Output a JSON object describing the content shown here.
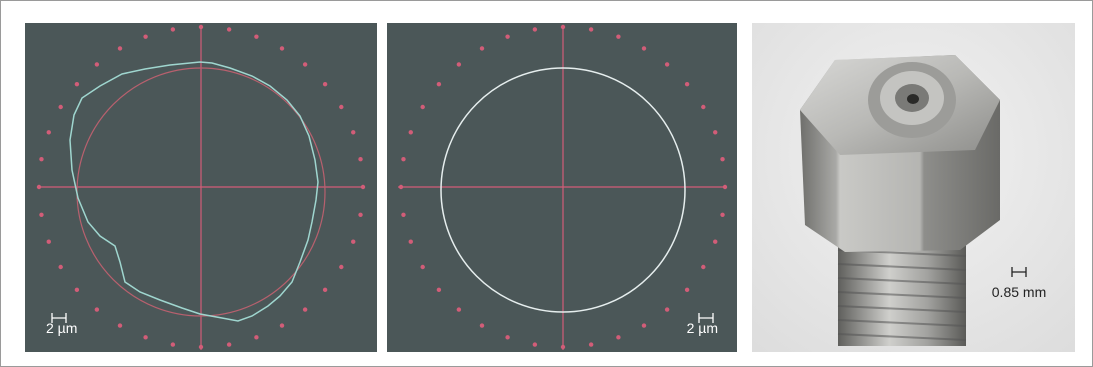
{
  "panels": [
    {
      "scale_label": "2 µm"
    },
    {
      "scale_label": "2 µm"
    },
    {
      "scale_label": "0.85 mm"
    }
  ]
}
